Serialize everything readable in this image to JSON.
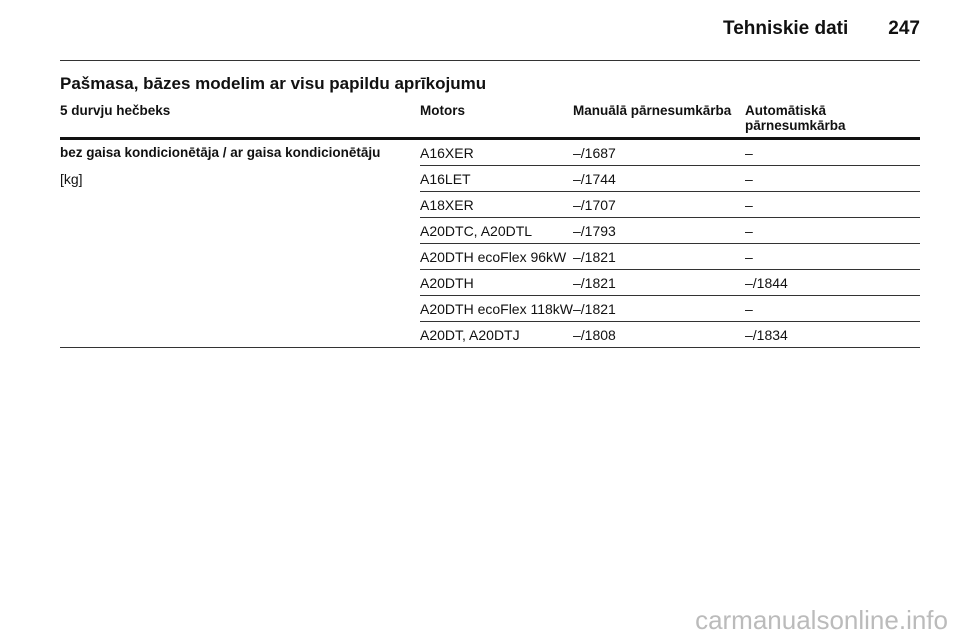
{
  "header": {
    "title": "Tehniskie dati",
    "page": "247"
  },
  "section": {
    "title": "Pašmasa, bāzes modelim ar visu papildu aprīkojumu"
  },
  "table": {
    "columns": [
      "5 durvju hečbeks",
      "Motors",
      "Manuālā pārnesumkārba",
      "Automātiskā pārnesumkārba"
    ],
    "label": "bez gaisa kondicionētāja / ar gaisa kondicionētāju",
    "unit": "[kg]",
    "rows": [
      [
        "A16XER",
        "–/1687",
        "–"
      ],
      [
        "A16LET",
        "–/1744",
        "–"
      ],
      [
        "A18XER",
        "–/1707",
        "–"
      ],
      [
        "A20DTC, A20DTL",
        "–/1793",
        "–"
      ],
      [
        "A20DTH ecoFlex 96kW",
        "–/1821",
        "–"
      ],
      [
        "A20DTH",
        "–/1821",
        "–/1844"
      ],
      [
        "A20DTH ecoFlex 118kW",
        "–/1821",
        "–"
      ],
      [
        "A20DT, A20DTJ",
        "–/1808",
        "–/1834"
      ]
    ]
  },
  "footer": {
    "watermark": "carmanualsonline.info"
  }
}
